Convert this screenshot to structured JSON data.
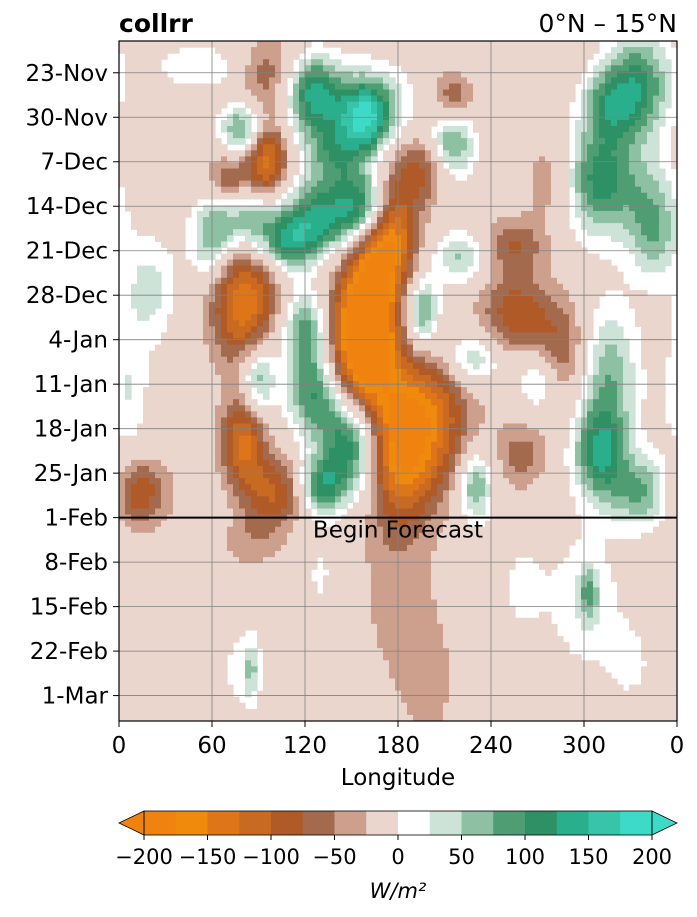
{
  "chart_data": {
    "type": "heatmap",
    "title_left": "collrr",
    "title_right": "0°N – 15°N",
    "xlabel": "Longitude",
    "ylabel": "",
    "x_ticks": [
      "0",
      "60",
      "120",
      "180",
      "240",
      "300",
      "0"
    ],
    "x_tick_values": [
      0,
      60,
      120,
      180,
      240,
      300,
      360
    ],
    "xlim": [
      0,
      360
    ],
    "y_ticks": [
      "23-Nov",
      "30-Nov",
      "7-Dec",
      "14-Dec",
      "21-Dec",
      "28-Dec",
      "4-Jan",
      "11-Jan",
      "18-Jan",
      "25-Jan",
      "1-Feb",
      "8-Feb",
      "15-Feb",
      "22-Feb",
      "1-Mar"
    ],
    "y_tick_dates": [
      "2021-11-23",
      "2021-11-30",
      "2021-12-07",
      "2021-12-14",
      "2021-12-21",
      "2021-12-28",
      "2022-01-04",
      "2022-01-11",
      "2022-01-18",
      "2022-01-25",
      "2022-02-01",
      "2022-02-08",
      "2022-02-15",
      "2022-02-22",
      "2022-03-01"
    ],
    "ylim": [
      "2021-11-18",
      "2022-03-05"
    ],
    "y_inverted": true,
    "grid": true,
    "forecast_start": "2022-02-01",
    "annotation": "Begin Forecast",
    "colorbar": {
      "label": "W/m²",
      "orientation": "horizontal",
      "extend": "both",
      "levels": [
        -200,
        -175,
        -150,
        -125,
        -100,
        -75,
        -50,
        -25,
        25,
        50,
        75,
        100,
        125,
        150,
        175,
        200
      ],
      "tick_labels": [
        "−200",
        "−150",
        "−100",
        "−50",
        "0",
        "50",
        "100",
        "150",
        "200"
      ],
      "tick_values": [
        -200,
        -150,
        -100,
        -50,
        0,
        50,
        100,
        150,
        200
      ],
      "colors": [
        "#f0830f",
        "#f08a0c",
        "#de7619",
        "#c96a22",
        "#b05a28",
        "#a46a4e",
        "#cda08e",
        "#ead6cd",
        "#ffffff",
        "#cde3d8",
        "#8ec0a3",
        "#4f9e73",
        "#2e9165",
        "#2aaf8c",
        "#37c4a8",
        "#3ddbc7"
      ],
      "under_color": "#f0830f",
      "over_color": "#3ddbc7"
    },
    "blobs": [
      {
        "lon": 60,
        "date": "2021-11-22",
        "rlon": 30,
        "rdays": 3,
        "v": 45
      },
      {
        "lon": 150,
        "date": "2021-11-28",
        "rlon": 35,
        "rdays": 5,
        "v": 55
      },
      {
        "lon": 95,
        "date": "2021-11-23",
        "rlon": 15,
        "rdays": 4,
        "v": -90
      },
      {
        "lon": 215,
        "date": "2021-11-27",
        "rlon": 10,
        "rdays": 3,
        "v": -90
      },
      {
        "lon": 160,
        "date": "2021-11-30",
        "rlon": 12,
        "rdays": 4,
        "v": 170
      },
      {
        "lon": 125,
        "date": "2021-11-26",
        "rlon": 12,
        "rdays": 4,
        "v": 130
      },
      {
        "lon": 80,
        "date": "2021-12-02",
        "rlon": 10,
        "rdays": 3,
        "v": 120
      },
      {
        "lon": 95,
        "date": "2021-12-07",
        "rlon": 10,
        "rdays": 5,
        "v": -150
      },
      {
        "lon": 70,
        "date": "2021-12-10",
        "rlon": 10,
        "rdays": 3,
        "v": -90
      },
      {
        "lon": 140,
        "date": "2021-12-06",
        "rlon": 15,
        "rdays": 4,
        "v": 100
      },
      {
        "lon": 195,
        "date": "2021-12-08",
        "rlon": 12,
        "rdays": 4,
        "v": -80
      },
      {
        "lon": 215,
        "date": "2021-12-04",
        "rlon": 10,
        "rdays": 4,
        "v": 110
      },
      {
        "lon": 130,
        "date": "2021-12-16",
        "rlon": 18,
        "rdays": 4,
        "v": 150
      },
      {
        "lon": 160,
        "date": "2021-12-14",
        "rlon": 12,
        "rdays": 4,
        "v": 180
      },
      {
        "lon": 85,
        "date": "2021-12-16",
        "rlon": 14,
        "rdays": 4,
        "v": 120
      },
      {
        "lon": 110,
        "date": "2021-12-20",
        "rlon": 12,
        "rdays": 3,
        "v": 110
      },
      {
        "lon": 165,
        "date": "2021-12-26",
        "rlon": 14,
        "rdays": 12,
        "v": -120
      },
      {
        "lon": 175,
        "date": "2021-12-18",
        "rlon": 12,
        "rdays": 6,
        "v": -130
      },
      {
        "lon": 255,
        "date": "2021-12-20",
        "rlon": 14,
        "rdays": 3,
        "v": -70
      },
      {
        "lon": 220,
        "date": "2021-12-22",
        "rlon": 12,
        "rdays": 3,
        "v": 80
      },
      {
        "lon": 280,
        "date": "2021-12-10",
        "rlon": 12,
        "rdays": 5,
        "v": -60
      },
      {
        "lon": 310,
        "date": "2021-12-10",
        "rlon": 18,
        "rdays": 6,
        "v": 140
      },
      {
        "lon": 335,
        "date": "2021-11-25",
        "rlon": 15,
        "rdays": 6,
        "v": 130
      },
      {
        "lon": 345,
        "date": "2021-12-17",
        "rlon": 12,
        "rdays": 6,
        "v": 100
      },
      {
        "lon": 315,
        "date": "2021-11-28",
        "rlon": 12,
        "rdays": 4,
        "v": 90
      },
      {
        "lon": 60,
        "date": "2021-12-19",
        "rlon": 10,
        "rdays": 5,
        "v": 100
      },
      {
        "lon": 80,
        "date": "2021-12-29",
        "rlon": 15,
        "rdays": 7,
        "v": -150
      },
      {
        "lon": 120,
        "date": "2022-01-02",
        "rlon": 10,
        "rdays": 4,
        "v": 110
      },
      {
        "lon": 155,
        "date": "2022-01-05",
        "rlon": 14,
        "rdays": 8,
        "v": -190
      },
      {
        "lon": 195,
        "date": "2021-12-31",
        "rlon": 8,
        "rdays": 4,
        "v": 130
      },
      {
        "lon": 228,
        "date": "2022-01-07",
        "rlon": 14,
        "rdays": 3,
        "v": 90
      },
      {
        "lon": 255,
        "date": "2021-12-31",
        "rlon": 16,
        "rdays": 5,
        "v": -90
      },
      {
        "lon": 285,
        "date": "2022-01-06",
        "rlon": 14,
        "rdays": 6,
        "v": -80
      },
      {
        "lon": 315,
        "date": "2022-01-10",
        "rlon": 14,
        "rdays": 8,
        "v": 100
      },
      {
        "lon": 270,
        "date": "2022-01-10",
        "rlon": 10,
        "rdays": 4,
        "v": 80
      },
      {
        "lon": 90,
        "date": "2022-01-10",
        "rlon": 8,
        "rdays": 4,
        "v": 110
      },
      {
        "lon": 125,
        "date": "2022-01-12",
        "rlon": 12,
        "rdays": 5,
        "v": 120
      },
      {
        "lon": 200,
        "date": "2022-01-16",
        "rlon": 20,
        "rdays": 8,
        "v": -120
      },
      {
        "lon": 180,
        "date": "2022-01-22",
        "rlon": 16,
        "rdays": 8,
        "v": -140
      },
      {
        "lon": 80,
        "date": "2022-01-20",
        "rlon": 10,
        "rdays": 5,
        "v": -130
      },
      {
        "lon": 100,
        "date": "2022-01-28",
        "rlon": 14,
        "rdays": 4,
        "v": -100
      },
      {
        "lon": 150,
        "date": "2022-01-20",
        "rlon": 14,
        "rdays": 6,
        "v": 180
      },
      {
        "lon": 130,
        "date": "2022-01-27",
        "rlon": 10,
        "rdays": 3,
        "v": 120
      },
      {
        "lon": 10,
        "date": "2022-01-28",
        "rlon": 15,
        "rdays": 4,
        "v": -110
      },
      {
        "lon": 230,
        "date": "2022-01-27",
        "rlon": 8,
        "rdays": 4,
        "v": 110
      },
      {
        "lon": 340,
        "date": "2022-01-28",
        "rlon": 16,
        "rdays": 4,
        "v": 110
      },
      {
        "lon": 310,
        "date": "2022-01-22",
        "rlon": 12,
        "rdays": 5,
        "v": 130
      },
      {
        "lon": 260,
        "date": "2022-01-22",
        "rlon": 12,
        "rdays": 4,
        "v": -60
      },
      {
        "lon": 20,
        "date": "2021-12-27",
        "rlon": 12,
        "rdays": 6,
        "v": 60
      },
      {
        "lon": 5,
        "date": "2022-01-12",
        "rlon": 10,
        "rdays": 8,
        "v": 50
      },
      {
        "lon": 85,
        "date": "2022-02-05",
        "rlon": 14,
        "rdays": 3,
        "v": -40
      },
      {
        "lon": 180,
        "date": "2022-02-14",
        "rlon": 20,
        "rdays": 10,
        "v": -35
      },
      {
        "lon": 200,
        "date": "2022-02-28",
        "rlon": 15,
        "rdays": 8,
        "v": -30
      },
      {
        "lon": 260,
        "date": "2022-02-12",
        "rlon": 10,
        "rdays": 5,
        "v": 35
      },
      {
        "lon": 300,
        "date": "2022-02-14",
        "rlon": 18,
        "rdays": 8,
        "v": 45
      },
      {
        "lon": 303,
        "date": "2022-02-13",
        "rlon": 4,
        "rdays": 3,
        "v": 75
      },
      {
        "lon": 80,
        "date": "2022-02-25",
        "rlon": 12,
        "rdays": 6,
        "v": 35
      },
      {
        "lon": 85,
        "date": "2022-02-25",
        "rlon": 3,
        "rdays": 3,
        "v": 60
      },
      {
        "lon": 330,
        "date": "2022-02-24",
        "rlon": 12,
        "rdays": 5,
        "v": 30
      },
      {
        "lon": 35,
        "date": "2022-02-16",
        "rlon": 14,
        "rdays": 6,
        "v": -25
      },
      {
        "lon": 130,
        "date": "2022-02-10",
        "rlon": 8,
        "rdays": 6,
        "v": 30
      }
    ]
  }
}
